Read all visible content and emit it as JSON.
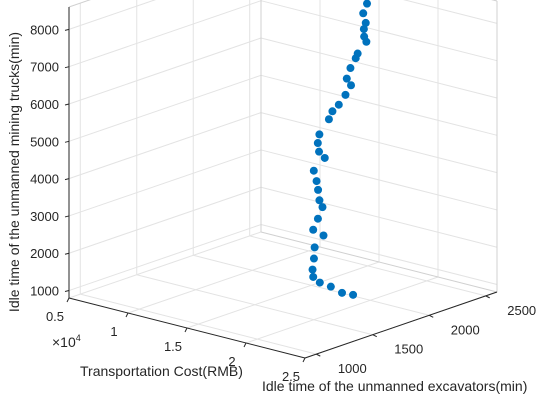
{
  "chart_data": {
    "type": "scatter3d",
    "title": "",
    "xlabel": "Transportation Cost(RMB)",
    "ylabel": "Idle time of the unmanned excavators(min)",
    "zlabel": "Idle time of the unmanned mining trucks(min)",
    "x_exponent_label": "×10",
    "x_exponent_power": "4",
    "xlim": [
      5000,
      25000
    ],
    "ylim": [
      900,
      2600
    ],
    "zlim": [
      800,
      8600
    ],
    "x_ticks": [
      "0.5",
      "1",
      "1.5",
      "2",
      "2.5"
    ],
    "y_ticks": [
      "1000",
      "1500",
      "2000",
      "2500"
    ],
    "z_ticks": [
      "1000",
      "2000",
      "3000",
      "4000",
      "5000",
      "6000",
      "7000",
      "8000"
    ],
    "grid": true,
    "marker_color": "#0072BD",
    "points": [
      [
        17264,
        2218,
        8609
      ],
      [
        17286,
        2285,
        8488
      ],
      [
        17191,
        2265,
        8250
      ],
      [
        16879,
        2264,
        7967
      ],
      [
        17188,
        2254,
        7744
      ],
      [
        16732,
        2285,
        7510
      ],
      [
        16622,
        2299,
        7286
      ],
      [
        16466,
        2335,
        7096
      ],
      [
        16379,
        2267,
        6845
      ],
      [
        15860,
        2304,
        6640
      ],
      [
        15815,
        2262,
        6416
      ],
      [
        15735,
        2238,
        6151
      ],
      [
        15758,
        2273,
        5939
      ],
      [
        15519,
        2249,
        5687
      ],
      [
        15344,
        2208,
        5452
      ],
      [
        14853,
        2203,
        5241
      ],
      [
        14670,
        2191,
        5025
      ],
      [
        15049,
        2067,
        4778
      ],
      [
        14878,
        2071,
        4529
      ],
      [
        15154,
        2053,
        4339
      ],
      [
        15074,
        2112,
        4103
      ],
      [
        15197,
        2002,
        3885
      ],
      [
        15443,
        2001,
        3628
      ],
      [
        15588,
        1999,
        3406
      ],
      [
        15685,
        2001,
        3132
      ],
      [
        15800,
        2016,
        2943
      ],
      [
        16199,
        1934,
        2750
      ],
      [
        16286,
        1883,
        2514
      ],
      [
        16565,
        1945,
        2318
      ],
      [
        16686,
        1854,
        2104
      ],
      [
        16924,
        1823,
        1856
      ],
      [
        17264,
        1775,
        1636
      ],
      [
        17590,
        1747,
        1495
      ],
      [
        18024,
        1760,
        1365
      ],
      [
        18500,
        1808,
        1244
      ],
      [
        19110,
        1843,
        1092
      ],
      [
        19675,
        1882,
        1043
      ]
    ]
  }
}
